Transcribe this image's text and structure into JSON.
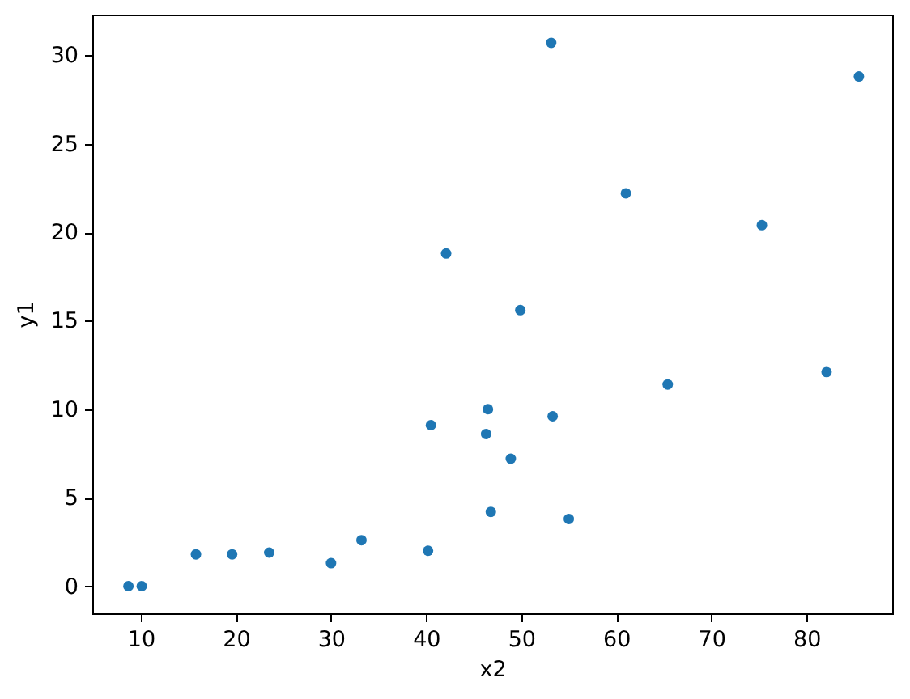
{
  "chart_data": {
    "type": "scatter",
    "xlabel": "x2",
    "ylabel": "y1",
    "x": [
      8.7,
      10.1,
      15.8,
      19.6,
      23.5,
      30.0,
      33.2,
      40.2,
      40.5,
      42.1,
      46.3,
      46.5,
      46.8,
      48.9,
      49.9,
      53.15,
      53.3,
      55.0,
      61.0,
      65.4,
      75.3,
      82.1,
      85.5
    ],
    "values": [
      0.0,
      0.0,
      1.8,
      1.8,
      1.9,
      1.3,
      2.6,
      2.0,
      9.1,
      18.8,
      8.6,
      10.0,
      4.2,
      7.2,
      15.6,
      30.7,
      9.6,
      3.8,
      22.2,
      11.4,
      20.4,
      12.1,
      28.8
    ],
    "color": "#1f77b4",
    "marker": "circle",
    "xlim": [
      4.9,
      89.0
    ],
    "xticks": [
      10,
      20,
      30,
      40,
      50,
      60,
      70,
      80
    ],
    "ylim": [
      -1.53,
      32.3
    ],
    "yticks": [
      0,
      5,
      10,
      15,
      20,
      25,
      30
    ]
  }
}
